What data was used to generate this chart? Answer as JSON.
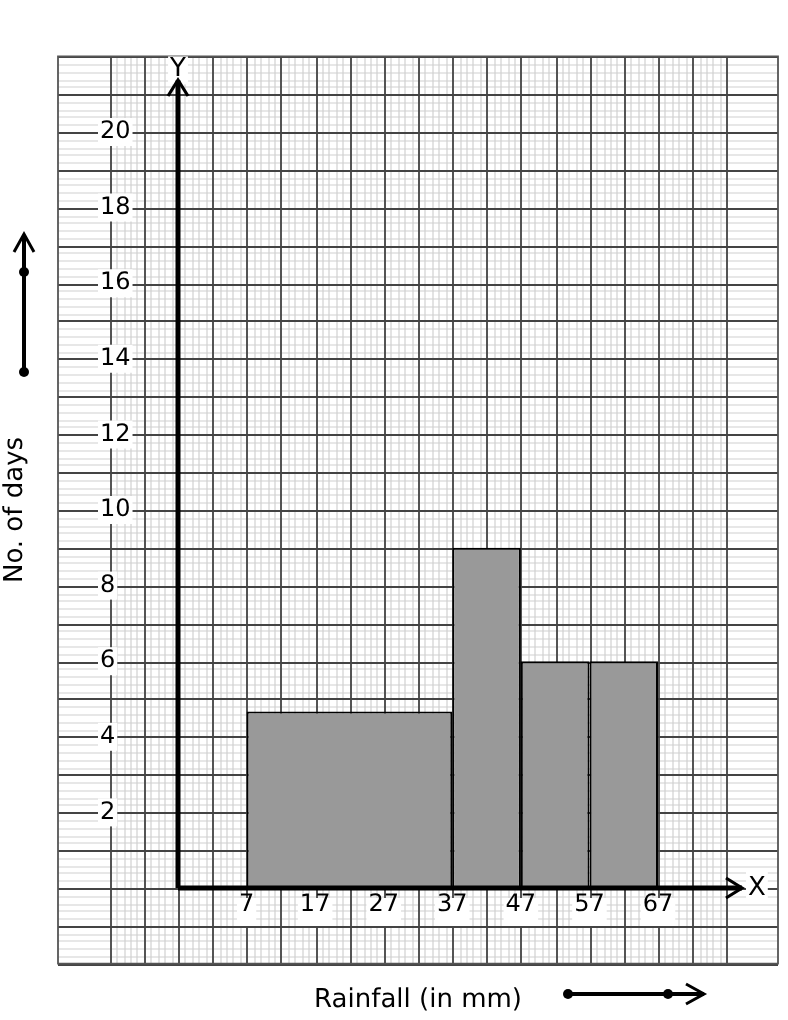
{
  "chart_data": {
    "type": "histogram",
    "xlabel": "Rainfall (in mm)",
    "ylabel": "No. of days",
    "bins": [
      7,
      37,
      47,
      57,
      67
    ],
    "values": [
      4.67,
      9,
      6,
      6
    ],
    "color": "#999999",
    "xlim": [
      -13,
      77
    ],
    "xticks": [
      7,
      17,
      27,
      37,
      47,
      57,
      67
    ],
    "ylim": [
      -2,
      22
    ],
    "yticks": [
      2,
      4,
      6,
      8,
      10,
      12,
      14,
      16,
      18,
      20
    ],
    "annotations": [
      "X",
      "Y"
    ],
    "ref_lines": [
      {
        "axis": "x",
        "value": -3,
        "color": "#000000"
      }
    ],
    "grid": true
  }
}
